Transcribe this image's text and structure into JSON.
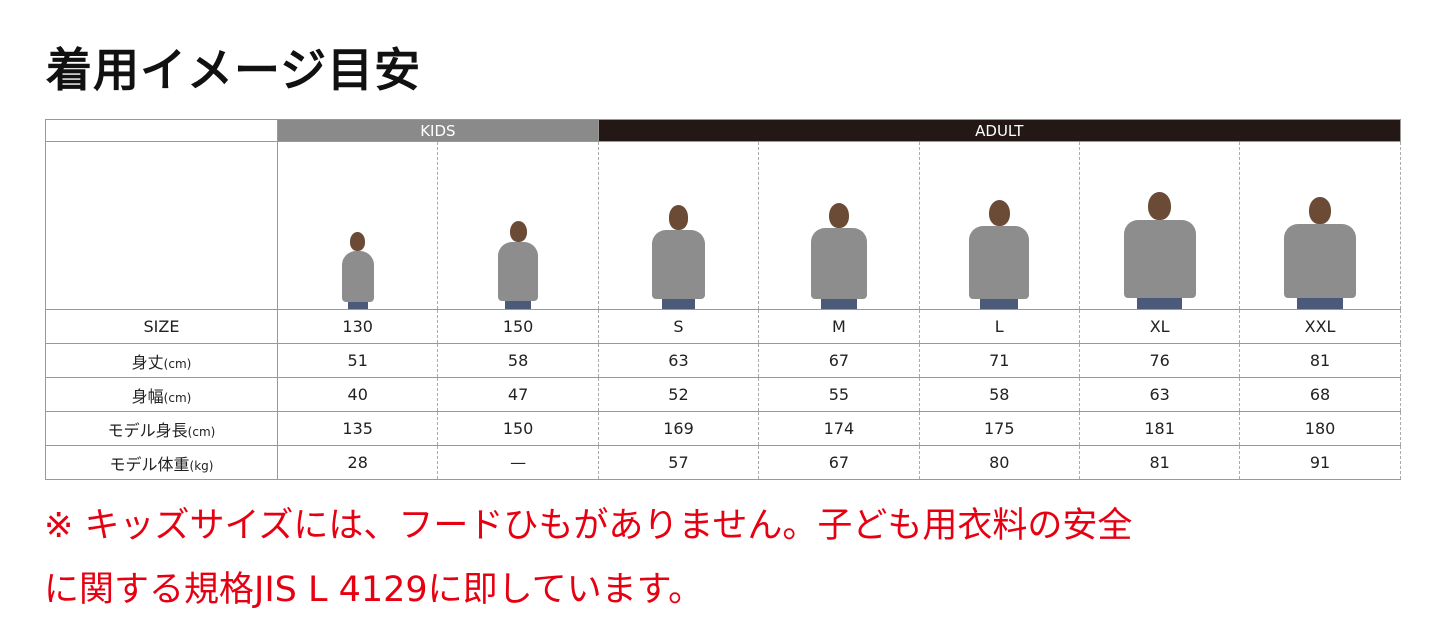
{
  "title": "着用イメージ目安",
  "groups": {
    "kids": "KIDS",
    "adult": "ADULT"
  },
  "colors": {
    "kids_header": "#8a8a8a",
    "adult_header": "#231815",
    "note": "#e60012"
  },
  "rows": [
    {
      "label": "SIZE",
      "unit": "",
      "values": [
        "130",
        "150",
        "S",
        "M",
        "L",
        "XL",
        "XXL"
      ]
    },
    {
      "label": "身丈",
      "unit": "(cm)",
      "values": [
        "51",
        "58",
        "63",
        "67",
        "71",
        "76",
        "81"
      ]
    },
    {
      "label": "身幅",
      "unit": "(cm)",
      "values": [
        "40",
        "47",
        "52",
        "55",
        "58",
        "63",
        "68"
      ]
    },
    {
      "label": "モデル身長",
      "unit": "(cm)",
      "values": [
        "135",
        "150",
        "169",
        "174",
        "175",
        "181",
        "180"
      ]
    },
    {
      "label": "モデル体重",
      "unit": "(kg)",
      "values": [
        "28",
        "—",
        "57",
        "67",
        "80",
        "81",
        "91"
      ]
    }
  ],
  "model_images": [
    "kids-130-model",
    "kids-150-model",
    "adult-s-model",
    "adult-m-model",
    "adult-l-model",
    "adult-xl-model",
    "adult-xxl-model"
  ],
  "note": {
    "line1": "※ キッズサイズには、フードひもがありません。子ども用衣料の安全",
    "line2": "に関する規格JIS L 4129に即しています。"
  }
}
